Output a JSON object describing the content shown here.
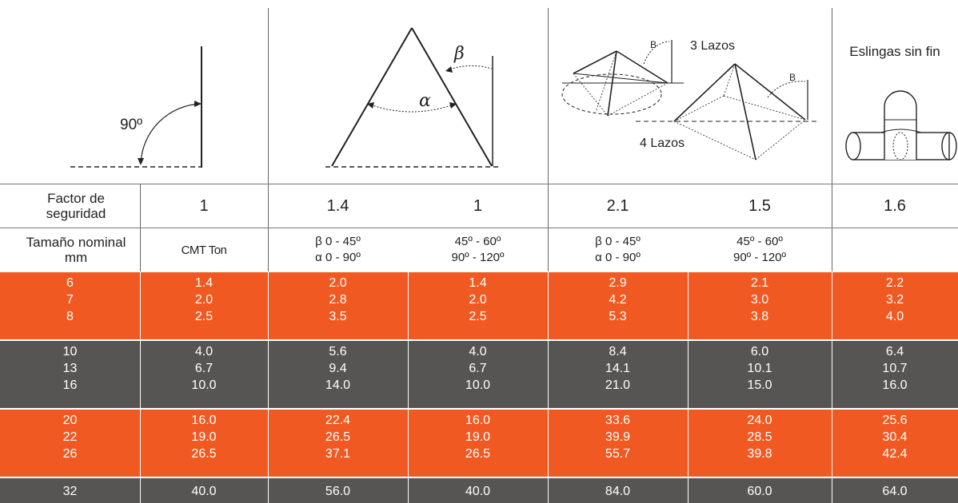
{
  "diagrams": {
    "vertical_angle": "90º",
    "beta": "β",
    "alpha": "α",
    "beta_small": "B",
    "three_loops": "3 Lazos",
    "four_loops": "4 Lazos",
    "endless_slings": "Eslingas sin fin"
  },
  "header": {
    "safety_factor_label": "Factor de seguridad",
    "factors": [
      "1",
      "1.4",
      "1",
      "2.1",
      "1.5",
      "1.6"
    ],
    "nominal_size_label": "Tamaño nominal mm",
    "cmt_label": "CMT Ton",
    "angle_a_beta": "β 0 - 45º",
    "angle_a_alpha": "α 0 - 90º",
    "angle_b_beta": "45º - 60º",
    "angle_b_alpha": "90º - 120º",
    "angle_c_beta": "β 0 - 45º",
    "angle_c_alpha": "α 0 - 90º",
    "angle_d_beta": "45º - 60º",
    "angle_d_alpha": "90º - 120º"
  },
  "colors": {
    "orange": "#f05a22",
    "gray": "#565553"
  },
  "groups": [
    {
      "color": "orange",
      "rows": [
        [
          "6",
          "1.4",
          "2.0",
          "1.4",
          "2.9",
          "2.1",
          "2.2"
        ],
        [
          "7",
          "2.0",
          "2.8",
          "2.0",
          "4.2",
          "3.0",
          "3.2"
        ],
        [
          "8",
          "2.5",
          "3.5",
          "2.5",
          "5.3",
          "3.8",
          "4.0"
        ]
      ]
    },
    {
      "color": "gray",
      "rows": [
        [
          "10",
          "4.0",
          "5.6",
          "4.0",
          "8.4",
          "6.0",
          "6.4"
        ],
        [
          "13",
          "6.7",
          "9.4",
          "6.7",
          "14.1",
          "10.1",
          "10.7"
        ],
        [
          "16",
          "10.0",
          "14.0",
          "10.0",
          "21.0",
          "15.0",
          "16.0"
        ]
      ]
    },
    {
      "color": "orange",
      "rows": [
        [
          "20",
          "16.0",
          "22.4",
          "16.0",
          "33.6",
          "24.0",
          "25.6"
        ],
        [
          "22",
          "19.0",
          "26.5",
          "19.0",
          "39.9",
          "28.5",
          "30.4"
        ],
        [
          "26",
          "26.5",
          "37.1",
          "26.5",
          "55.7",
          "39.8",
          "42.4"
        ]
      ]
    },
    {
      "color": "gray",
      "rows": [
        [
          "32",
          "40.0",
          "56.0",
          "40.0",
          "84.0",
          "60.0",
          "64.0"
        ]
      ]
    }
  ]
}
